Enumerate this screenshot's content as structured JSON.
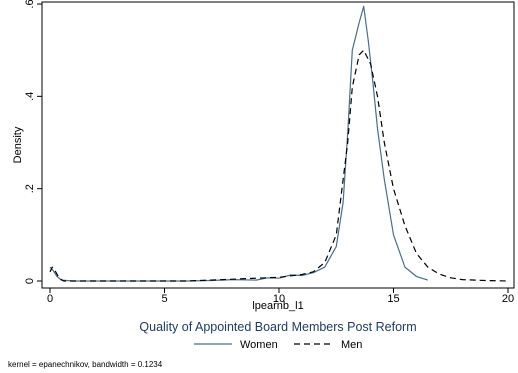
{
  "chart_data": {
    "type": "line",
    "title": "Quality of Appointed Board Members Post Reform",
    "xlabel": "lpearnb_l1",
    "ylabel": "Density",
    "xlim": [
      0,
      20
    ],
    "ylim": [
      0,
      0.6
    ],
    "xticks": [
      {
        "value": 0,
        "label": "0"
      },
      {
        "value": 5,
        "label": "5"
      },
      {
        "value": 10,
        "label": "10"
      },
      {
        "value": 15,
        "label": "15"
      },
      {
        "value": 20,
        "label": "20"
      }
    ],
    "yticks": [
      {
        "value": 0,
        "label": "0"
      },
      {
        "value": 0.2,
        "label": ".2"
      },
      {
        "value": 0.4,
        "label": ".4"
      },
      {
        "value": 0.6,
        "label": ".6"
      }
    ],
    "grid": false,
    "legend_position": "bottom",
    "note": "kernel = epanechnikov, bandwidth = 0.1234",
    "series": [
      {
        "name": "Women",
        "color": "#4a6e8c",
        "dash": "solid",
        "x": [
          0,
          0.15,
          0.3,
          0.5,
          1,
          2,
          4,
          6,
          7,
          8,
          9,
          9.5,
          10,
          10.5,
          11,
          11.5,
          12,
          12.5,
          12.8,
          13,
          13.2,
          13.5,
          13.7,
          13.9,
          14.1,
          14.3,
          14.6,
          15,
          15.5,
          16,
          16.5
        ],
        "y": [
          0.03,
          0.022,
          0.01,
          0.002,
          0,
          0,
          0,
          0,
          0.001,
          0.003,
          0.002,
          0.007,
          0.006,
          0.013,
          0.012,
          0.018,
          0.03,
          0.075,
          0.17,
          0.32,
          0.5,
          0.56,
          0.595,
          0.52,
          0.43,
          0.33,
          0.22,
          0.1,
          0.03,
          0.01,
          0.002
        ]
      },
      {
        "name": "Men",
        "color": "#000000",
        "dash": "dashed",
        "x": [
          0,
          0.1,
          0.25,
          0.4,
          0.6,
          1,
          3,
          6,
          7,
          8,
          9,
          10,
          11,
          11.5,
          12,
          12.5,
          13,
          13.2,
          13.5,
          13.7,
          14,
          14.3,
          14.6,
          15,
          15.5,
          16,
          16.5,
          17,
          17.5,
          18,
          19,
          20
        ],
        "y": [
          0.02,
          0.03,
          0.02,
          0.006,
          0,
          0,
          0,
          0,
          0.002,
          0.004,
          0.006,
          0.008,
          0.014,
          0.02,
          0.04,
          0.1,
          0.3,
          0.42,
          0.49,
          0.5,
          0.47,
          0.4,
          0.3,
          0.2,
          0.12,
          0.06,
          0.03,
          0.015,
          0.007,
          0.003,
          0.001,
          0
        ]
      }
    ]
  }
}
